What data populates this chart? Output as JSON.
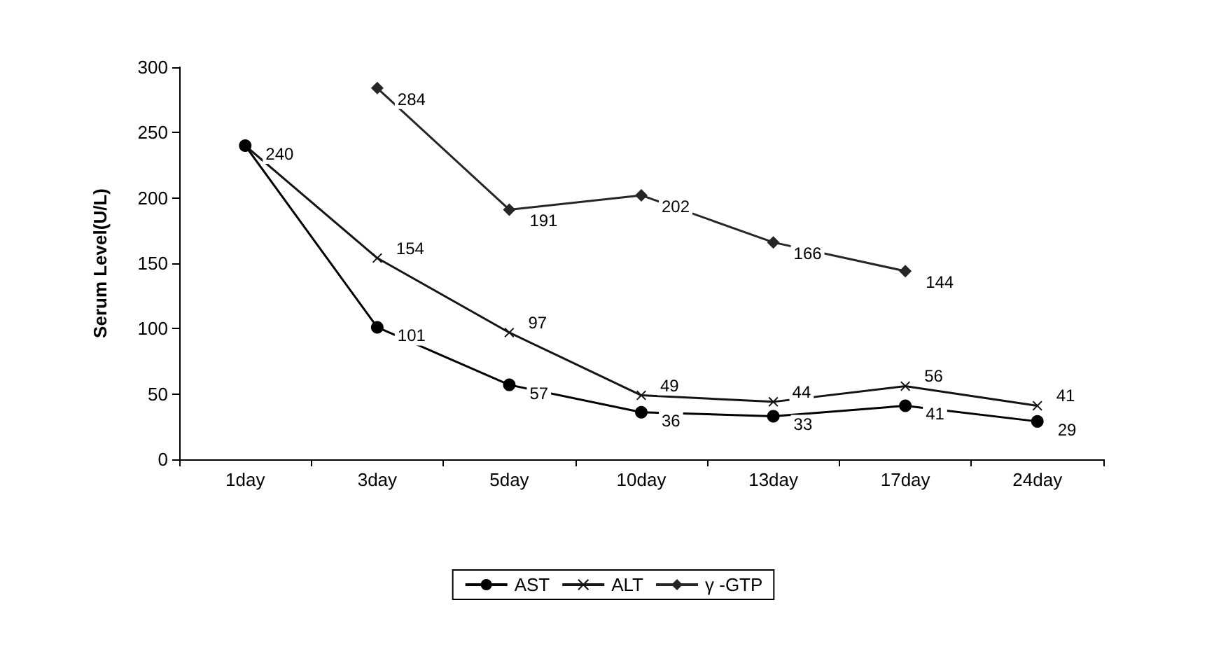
{
  "chart_data": {
    "type": "line",
    "ylabel": "Serum Level(U/L)",
    "categories": [
      "1day",
      "3day",
      "5day",
      "10day",
      "13day",
      "17day",
      "24day"
    ],
    "series": [
      {
        "name": "AST",
        "color": "#000000",
        "marker": "circle",
        "values": [
          240,
          101,
          57,
          36,
          33,
          41,
          29
        ],
        "value_labels": [
          "240",
          "101",
          "57",
          "36",
          "33",
          "41",
          "29"
        ]
      },
      {
        "name": "ALT",
        "color": "#141414",
        "marker": "cross",
        "values": [
          240,
          154,
          97,
          49,
          44,
          56,
          41
        ],
        "value_labels": [
          null,
          "154",
          "97",
          "49",
          "44",
          "56",
          "41"
        ]
      },
      {
        "name": "γ -GTP",
        "color": "#262626",
        "marker": "diamond",
        "values": [
          null,
          284,
          191,
          202,
          166,
          144,
          null
        ],
        "value_labels": [
          null,
          "284",
          "191",
          "202",
          "166",
          "144",
          null
        ]
      }
    ],
    "ylim": [
      0,
      300
    ],
    "yticks": [
      0,
      50,
      100,
      150,
      200,
      250,
      300
    ],
    "legend": "bottom",
    "grid": false
  }
}
